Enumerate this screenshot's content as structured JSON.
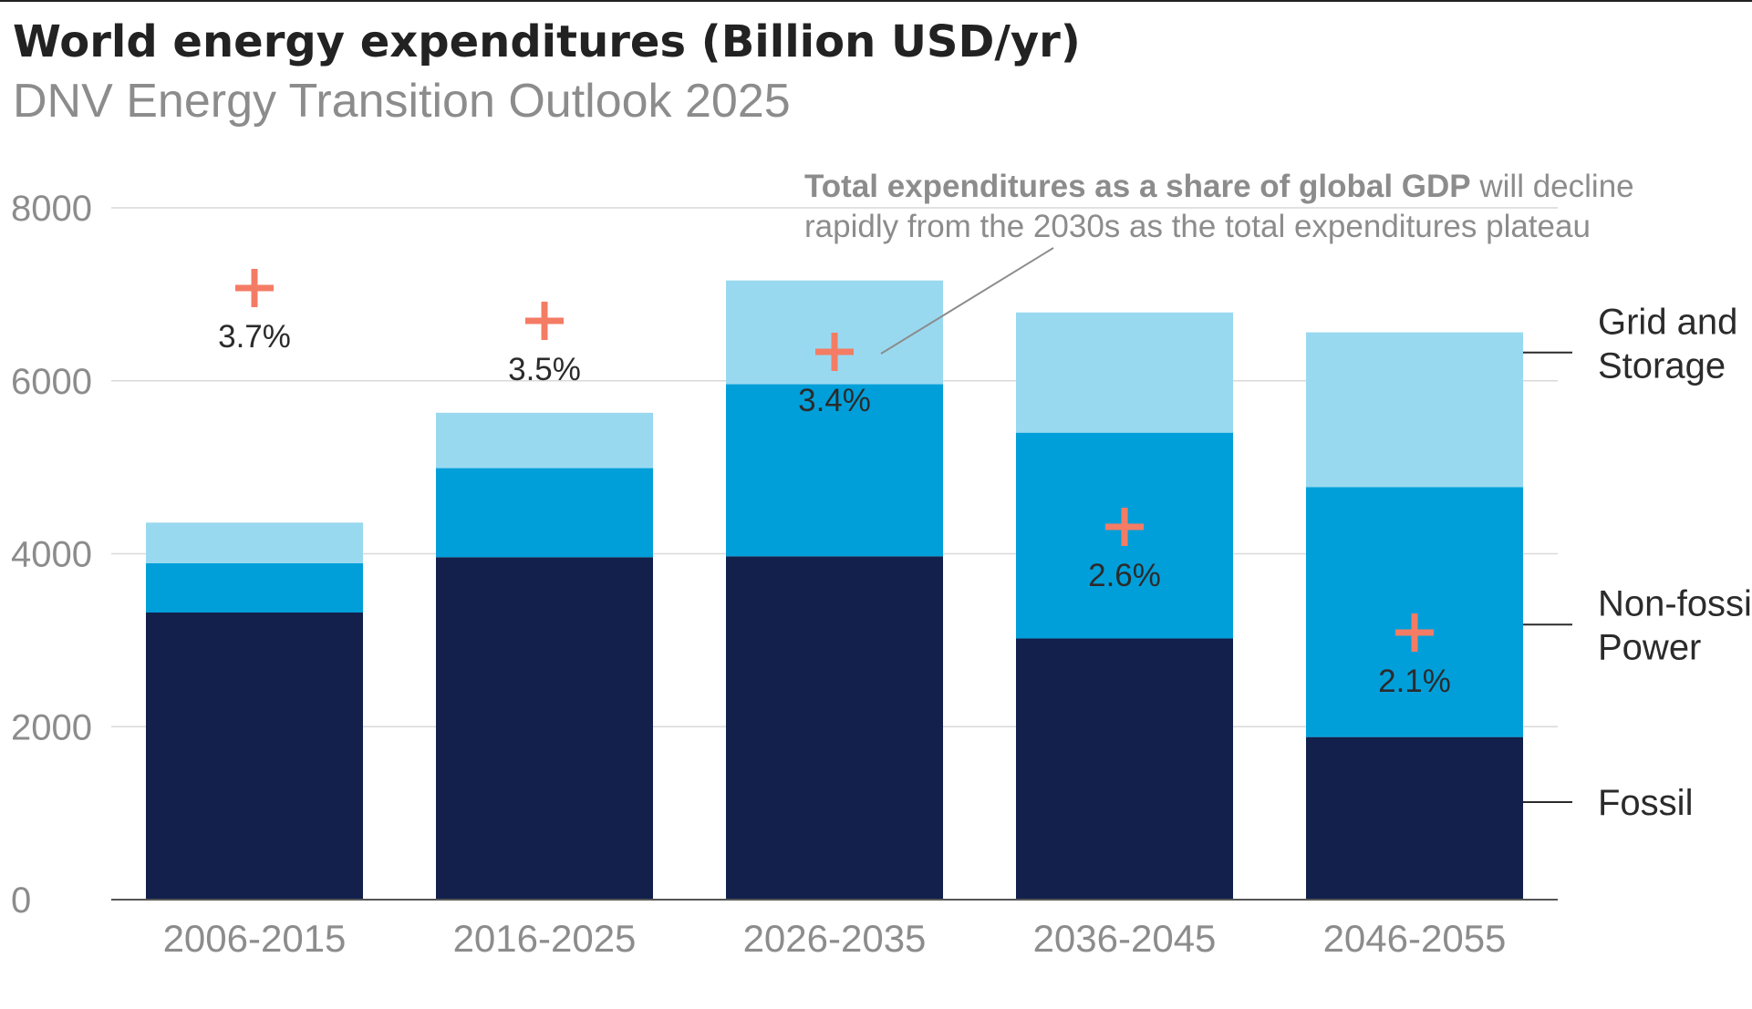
{
  "chart_data": {
    "type": "bar",
    "stacked": true,
    "title": "World energy expenditures (Billion USD/yr)",
    "subtitle": "DNV Energy Transition Outlook 2025",
    "xlabel": "",
    "ylabel": "",
    "ylim": [
      0,
      8000
    ],
    "yticks": [
      0,
      2000,
      4000,
      6000,
      8000
    ],
    "grid": true,
    "categories": [
      "2006-2015",
      "2016-2025",
      "2026-2035",
      "2036-2045",
      "2046-2055"
    ],
    "series": [
      {
        "name": "Fossil",
        "color": "#12204b",
        "values": [
          3320,
          3960,
          3970,
          3020,
          1880
        ]
      },
      {
        "name": "Non-fossil Power",
        "label_lines": [
          "Non-fossil",
          "Power"
        ],
        "color": "#009fda",
        "values": [
          570,
          1030,
          1990,
          2380,
          2890
        ]
      },
      {
        "name": "Grid and Storage",
        "label_lines": [
          "Grid and",
          "Storage"
        ],
        "color": "#99d9f0",
        "values": [
          470,
          640,
          1200,
          1390,
          1790
        ]
      }
    ],
    "gdp_share": {
      "name": "Total expenditures as a share of global GDP",
      "marker_color": "#f47c64",
      "values": [
        3.7,
        3.5,
        3.4,
        2.6,
        2.1
      ],
      "labels": [
        "3.7%",
        "3.5%",
        "3.4%",
        "2.6%",
        "2.1%"
      ]
    },
    "annotation": {
      "bold": "Total expenditures as a share of global GDP",
      "rest_line1": " will decline",
      "line2": "rapidly from the 2030s as the total expenditures plateau"
    },
    "legend": [
      "Grid and Storage",
      "Non-fossil Power",
      "Fossil"
    ]
  }
}
